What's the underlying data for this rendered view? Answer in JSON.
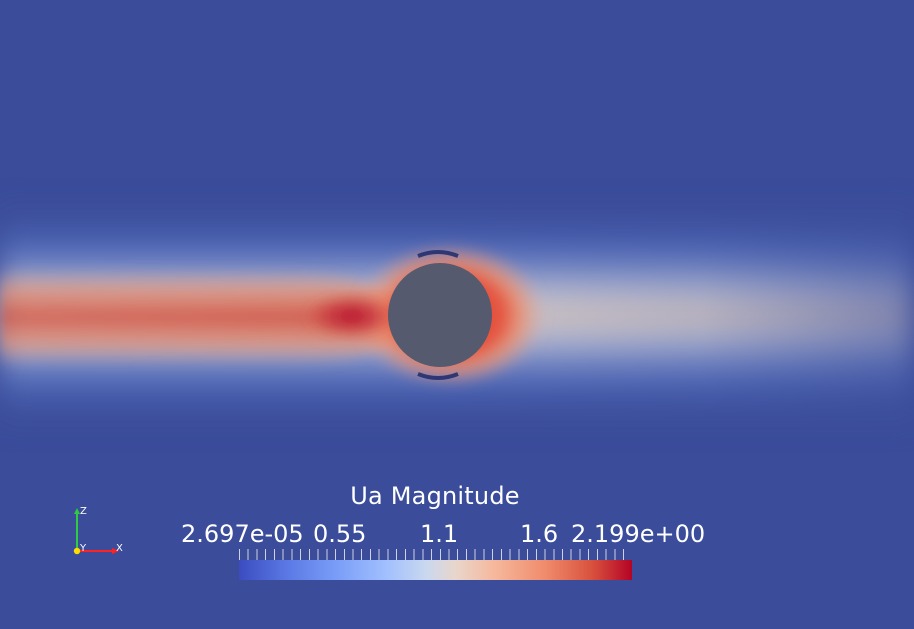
{
  "scalar_bar": {
    "title": "Ua Magnitude",
    "min_label": "2.697e-05",
    "tick_055": "0.55",
    "tick_11": "1.1",
    "tick_16": "1.6",
    "max_label": "2.199e+00",
    "colormap": "cool-to-warm",
    "low_color": "#3b4cc0",
    "high_color": "#b40426"
  },
  "axes": {
    "z_label": "Z",
    "y_label": "Y",
    "x_label": "X",
    "z_color": "#2ecc40",
    "y_color": "#ffdc00",
    "x_color": "#ff2222"
  },
  "scene": {
    "background_color": "#3a4c9a",
    "obstacle_color": "#555a6e",
    "obstacle_shape": "circle"
  }
}
